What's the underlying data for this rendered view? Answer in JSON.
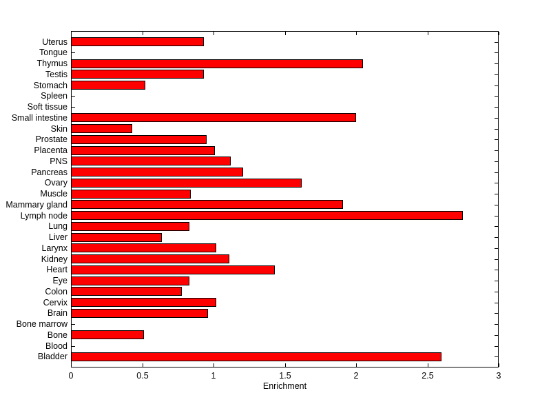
{
  "chart_data": {
    "type": "bar",
    "orientation": "horizontal",
    "title": "",
    "xlabel": "Enrichment",
    "ylabel": "",
    "xlim": [
      0,
      3
    ],
    "xticks": [
      "0",
      "0.5",
      "1",
      "1.5",
      "2",
      "2.5",
      "3"
    ],
    "xtick_values": [
      0,
      0.5,
      1,
      1.5,
      2,
      2.5,
      3
    ],
    "grid": false,
    "legend": false,
    "bar_color": "#ff0000",
    "bar_edge_color": "#000000",
    "background_color": "#ffffff",
    "axis_color": "#000000",
    "categories": [
      "Uterus",
      "Tongue",
      "Thymus",
      "Testis",
      "Stomach",
      "Spleen",
      "Soft tissue",
      "Small intestine",
      "Skin",
      "Prostate",
      "Placenta",
      "PNS",
      "Pancreas",
      "Ovary",
      "Muscle",
      "Mammary gland",
      "Lymph node",
      "Lung",
      "Liver",
      "Larynx",
      "Kidney",
      "Heart",
      "Eye",
      "Colon",
      "Cervix",
      "Brain",
      "Bone marrow",
      "Bone",
      "Blood",
      "Bladder"
    ],
    "values": [
      0.93,
      0,
      2.05,
      0.93,
      0.52,
      0,
      0,
      2.0,
      0.43,
      0.95,
      1.01,
      1.12,
      1.21,
      1.62,
      0.84,
      1.91,
      2.75,
      0.83,
      0.64,
      1.02,
      1.11,
      1.43,
      0.83,
      0.78,
      1.02,
      0.96,
      0,
      0.51,
      0,
      2.6
    ]
  }
}
